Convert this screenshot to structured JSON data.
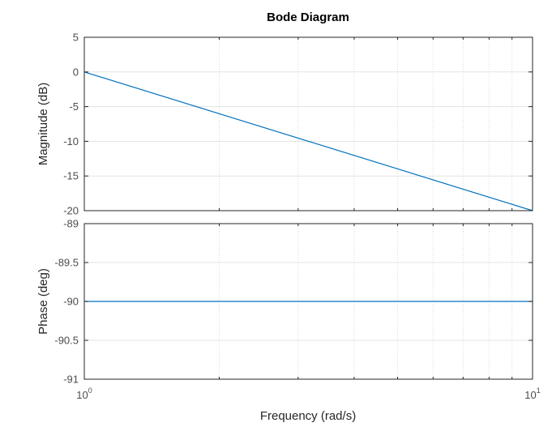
{
  "chart_data": {
    "type": "line",
    "title": "Bode Diagram",
    "xlabel": "Frequency  (rad/s)",
    "x_scale": "log",
    "xlim": [
      1,
      10
    ],
    "x_ticks": [
      {
        "value": 1,
        "base": "10",
        "exp": "0"
      },
      {
        "value": 10,
        "base": "10",
        "exp": "1"
      }
    ],
    "grid": true,
    "line_color": "#0072bd",
    "panels": [
      {
        "ylabel": "Magnitude (dB)",
        "ylim": [
          -20,
          5
        ],
        "y_ticks": [
          "5",
          "0",
          "-5",
          "-10",
          "-15",
          "-20"
        ],
        "y_tick_values": [
          5,
          0,
          -5,
          -10,
          -15,
          -20
        ],
        "series": [
          {
            "x": [
              1,
              10
            ],
            "y": [
              0,
              -20
            ]
          }
        ]
      },
      {
        "ylabel": "Phase (deg)",
        "ylim": [
          -91,
          -89
        ],
        "y_ticks": [
          "-89",
          "-89.5",
          "-90",
          "-90.5",
          "-91"
        ],
        "y_tick_values": [
          -89,
          -89.5,
          -90,
          -90.5,
          -91
        ],
        "series": [
          {
            "x": [
              1,
              10
            ],
            "y": [
              -90,
              -90
            ]
          }
        ]
      }
    ]
  }
}
